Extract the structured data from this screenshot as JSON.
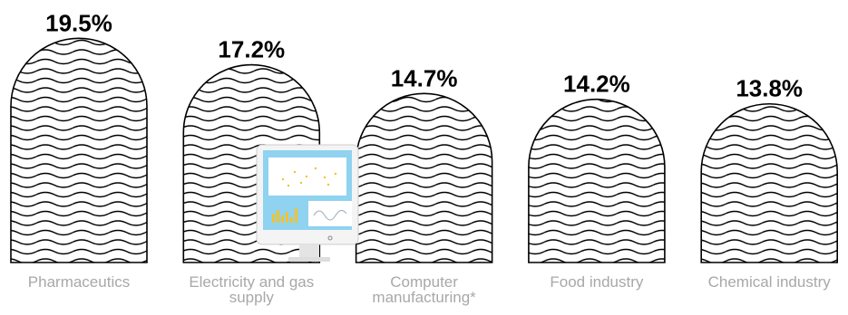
{
  "chart_data": {
    "type": "arch-bar",
    "categories": [
      "Pharmaceutics",
      "Electricity and gas supply",
      "Computer manufacturing*",
      "Food industry",
      "Chemical industry"
    ],
    "values": [
      19.5,
      17.2,
      14.7,
      14.2,
      13.8
    ],
    "value_labels": [
      "19.5%",
      "17.2%",
      "14.7%",
      "14.2%",
      "13.8%"
    ]
  }
}
